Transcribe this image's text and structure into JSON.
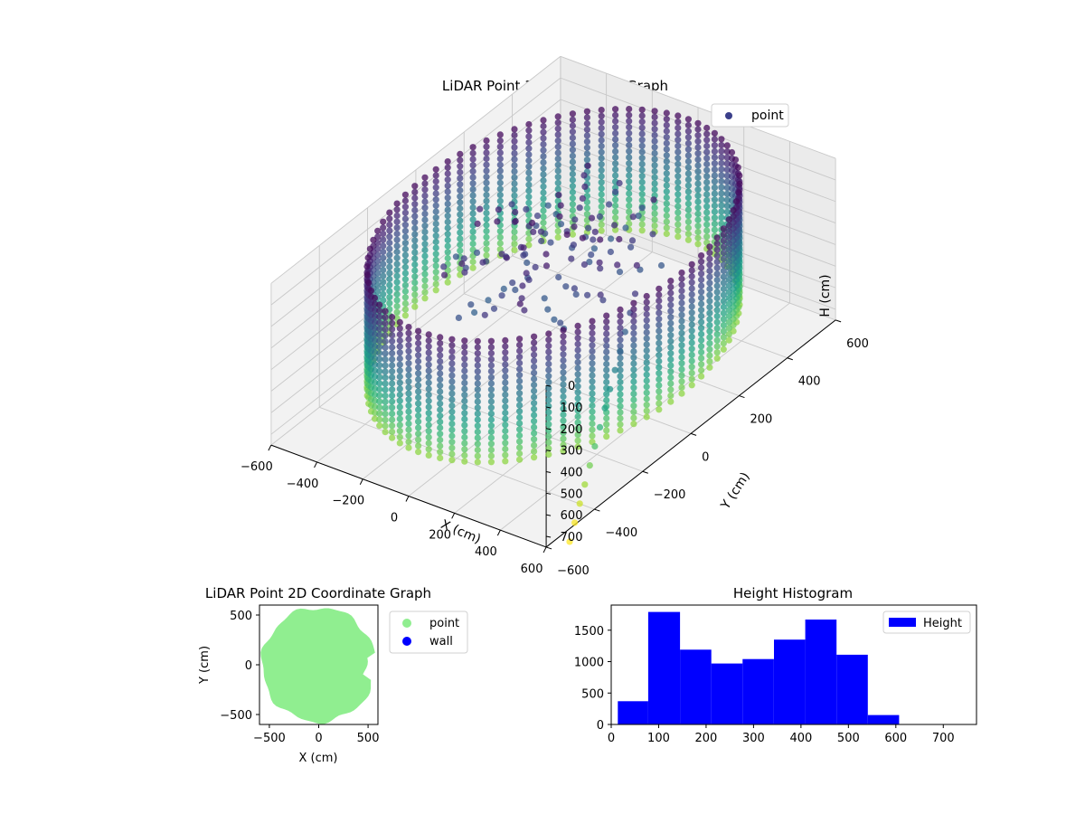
{
  "chart_data": [
    {
      "type": "scatter",
      "title": "LiDAR Point 3D Coordinate Graph",
      "xlabel": "X (cm)",
      "ylabel": "Y (cm)",
      "zlabel": "H (cm)",
      "xlim": [
        -600,
        600
      ],
      "ylim": [
        -600,
        600
      ],
      "zlim": [
        750,
        0
      ],
      "x_ticks": [
        "−600",
        "−400",
        "−200",
        "0",
        "200",
        "400",
        "600"
      ],
      "y_ticks": [
        "−600",
        "−400",
        "−200",
        "0",
        "200",
        "400",
        "600"
      ],
      "z_ticks": [
        "0",
        "100",
        "200",
        "300",
        "400",
        "500",
        "600",
        "700"
      ],
      "z_inverted": true,
      "legend": {
        "entries": [
          "point"
        ],
        "placement": "top-right"
      },
      "colormap": "viridis",
      "grid": true,
      "description_shape": "cylindrical wall of radius about 550 cm with vertical columns of points, heights 0 to about 600 cm"
    },
    {
      "type": "scatter",
      "title": "LiDAR Point 2D Coordinate Graph",
      "xlabel": "X (cm)",
      "ylabel": "Y (cm)",
      "xlim": [
        -600,
        600
      ],
      "ylim": [
        -600,
        600
      ],
      "x_ticks": [
        "−500",
        "0",
        "500"
      ],
      "y_ticks": [
        "−500",
        "0",
        "500"
      ],
      "series": [
        {
          "name": "point",
          "color": "#90ee90"
        },
        {
          "name": "wall",
          "color": "#0000ff"
        }
      ],
      "legend": {
        "entries": [
          "point",
          "wall"
        ],
        "placement": "outside-right"
      }
    },
    {
      "type": "bar",
      "title": "Height Histogram",
      "xlim": [
        0,
        770
      ],
      "ylim": [
        0,
        1900
      ],
      "x_ticks": [
        "0",
        "100",
        "200",
        "300",
        "400",
        "500",
        "600",
        "700"
      ],
      "y_ticks": [
        "0",
        "500",
        "1000",
        "1500"
      ],
      "bin_edges": [
        14,
        78,
        145,
        211,
        277,
        343,
        409,
        475,
        541,
        607,
        673,
        740
      ],
      "values": [
        370,
        1790,
        1190,
        970,
        1040,
        1350,
        1670,
        1110,
        150,
        0,
        0
      ],
      "series": [
        {
          "name": "Height",
          "color": "#0000ff"
        }
      ],
      "legend": {
        "entries": [
          "Height"
        ],
        "placement": "top-right"
      }
    }
  ]
}
